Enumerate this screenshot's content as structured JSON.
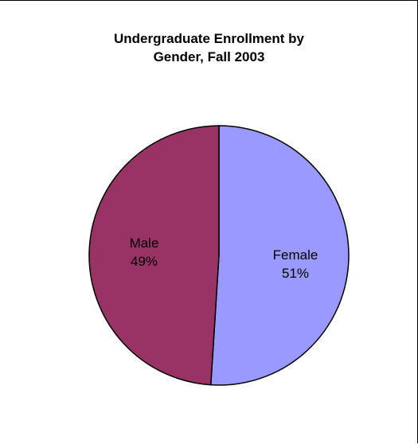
{
  "chart_data": {
    "type": "pie",
    "title_lines": [
      "Undergraduate Enrollment by",
      "Gender, Fall 2003"
    ],
    "slices": [
      {
        "label": "Female",
        "value": 51,
        "value_text": "51%",
        "color": "#9999ff"
      },
      {
        "label": "Male",
        "value": 49,
        "value_text": "49%",
        "color": "#993366"
      }
    ],
    "start_angle_deg": 0,
    "direction": "clockwise",
    "outline_color": "#000000",
    "legend": "none"
  }
}
